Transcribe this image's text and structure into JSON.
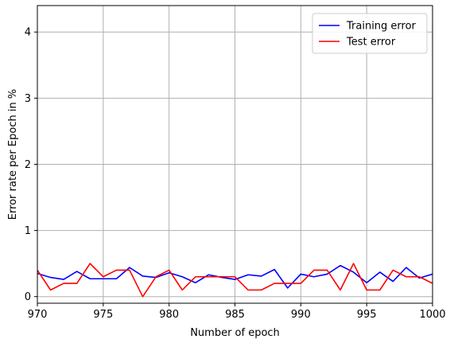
{
  "chart_data": {
    "type": "line",
    "title": "",
    "xlabel": "Number of epoch",
    "ylabel": "Error rate per Epoch in %",
    "xlim": [
      970,
      1000
    ],
    "ylim": [
      -0.1,
      4.4
    ],
    "xticks": [
      970,
      975,
      980,
      985,
      990,
      995,
      1000
    ],
    "yticks": [
      0,
      1,
      2,
      3,
      4
    ],
    "xtick_labels": [
      "970",
      "975",
      "980",
      "985",
      "990",
      "995",
      "1000"
    ],
    "ytick_labels": [
      "0",
      "1",
      "2",
      "3",
      "4"
    ],
    "grid": true,
    "legend_position": "top-right",
    "x": [
      970,
      971,
      972,
      973,
      974,
      975,
      976,
      977,
      978,
      979,
      980,
      981,
      982,
      983,
      984,
      985,
      986,
      987,
      988,
      989,
      990,
      991,
      992,
      993,
      994,
      995,
      996,
      997,
      998,
      999,
      1000
    ],
    "series": [
      {
        "name": "Training error",
        "color": "#0000ff",
        "values": [
          0.35,
          0.29,
          0.26,
          0.38,
          0.27,
          0.27,
          0.27,
          0.44,
          0.31,
          0.29,
          0.36,
          0.3,
          0.21,
          0.33,
          0.29,
          0.26,
          0.33,
          0.31,
          0.41,
          0.13,
          0.34,
          0.3,
          0.34,
          0.47,
          0.37,
          0.21,
          0.37,
          0.23,
          0.44,
          0.28,
          0.34
        ]
      },
      {
        "name": "Test error",
        "color": "#ff0000",
        "values": [
          0.4,
          0.1,
          0.2,
          0.2,
          0.5,
          0.3,
          0.4,
          0.4,
          0.0,
          0.3,
          0.4,
          0.1,
          0.3,
          0.3,
          0.3,
          0.3,
          0.1,
          0.1,
          0.2,
          0.2,
          0.2,
          0.4,
          0.4,
          0.1,
          0.5,
          0.1,
          0.1,
          0.4,
          0.3,
          0.3,
          0.2
        ]
      }
    ]
  }
}
